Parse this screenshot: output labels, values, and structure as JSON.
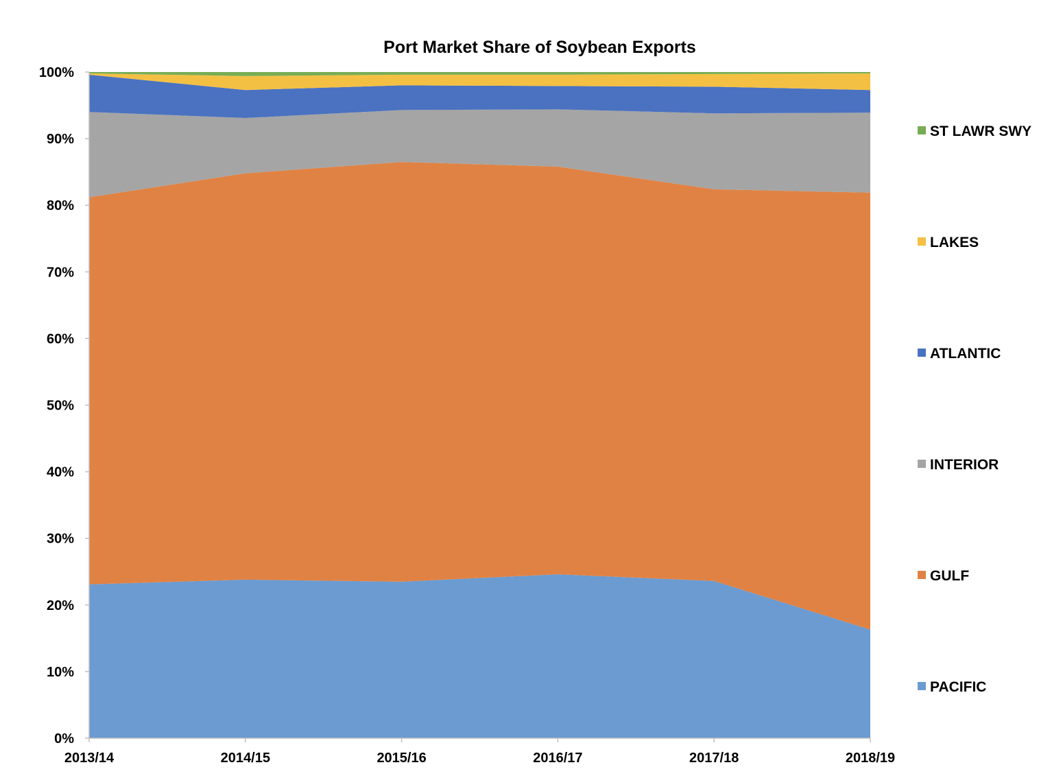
{
  "chart_data": {
    "type": "area",
    "stacked": true,
    "percent": true,
    "title": "Port Market Share of Soybean Exports",
    "xlabel": "",
    "ylabel": "",
    "categories": [
      "2013/14",
      "2014/15",
      "2015/16",
      "2016/17",
      "2017/18",
      "2018/19"
    ],
    "ylim": [
      0,
      100
    ],
    "yticks": [
      0,
      10,
      20,
      30,
      40,
      50,
      60,
      70,
      80,
      90,
      100
    ],
    "ytick_labels": [
      "0%",
      "10%",
      "20%",
      "30%",
      "40%",
      "50%",
      "60%",
      "70%",
      "80%",
      "90%",
      "100%"
    ],
    "grid": false,
    "legend_position": "right",
    "series": [
      {
        "name": "PACIFIC",
        "color": "#6b9bd1",
        "values": [
          23.1,
          23.8,
          23.5,
          24.6,
          23.6,
          16.3
        ]
      },
      {
        "name": "GULF",
        "color": "#e08244",
        "values": [
          58.1,
          61.0,
          63.0,
          61.2,
          58.8,
          65.6
        ]
      },
      {
        "name": "INTERIOR",
        "color": "#a5a5a5",
        "values": [
          12.8,
          8.3,
          7.8,
          8.6,
          11.4,
          12.0
        ]
      },
      {
        "name": "ATLANTIC",
        "color": "#4a72c0",
        "values": [
          5.6,
          4.2,
          3.7,
          3.5,
          4.0,
          3.4
        ]
      },
      {
        "name": "LAKES",
        "color": "#f4c043",
        "values": [
          0.2,
          2.1,
          1.6,
          1.7,
          1.9,
          2.5
        ]
      },
      {
        "name": "ST LAWR SWY",
        "color": "#77ad55",
        "values": [
          0.2,
          0.6,
          0.4,
          0.4,
          0.3,
          0.2
        ]
      }
    ]
  }
}
